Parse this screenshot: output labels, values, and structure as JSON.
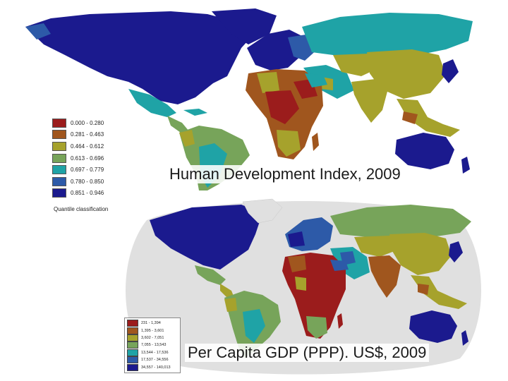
{
  "maps": {
    "hdi": {
      "title": "Human Development Index, 2009",
      "legend_title": "Quantile classification",
      "legend": [
        {
          "label": "0.000 - 0.280",
          "color": "#9b1c1c"
        },
        {
          "label": "0.281 - 0.463",
          "color": "#a0561e"
        },
        {
          "label": "0.464 - 0.612",
          "color": "#a6a22c"
        },
        {
          "label": "0.613 - 0.696",
          "color": "#77a45a"
        },
        {
          "label": "0.697 - 0.779",
          "color": "#1fa3a6"
        },
        {
          "label": "0.780 - 0.850",
          "color": "#2d5aa8"
        },
        {
          "label": "0.851 - 0.946",
          "color": "#1b1a8e"
        }
      ]
    },
    "gdp": {
      "title": "Per Capita GDP (PPP). US$, 2009",
      "legend": [
        {
          "label": "231 - 1,394",
          "color": "#9b1c1c"
        },
        {
          "label": "1,395 - 3,601",
          "color": "#a0561e"
        },
        {
          "label": "3,602 - 7,051",
          "color": "#a6a22c"
        },
        {
          "label": "7,055 - 13,543",
          "color": "#77a45a"
        },
        {
          "label": "13,544 - 17,536",
          "color": "#1fa3a6"
        },
        {
          "label": "17,537 - 34,556",
          "color": "#2d5aa8"
        },
        {
          "label": "34,557 - 140,013",
          "color": "#1b1a8e"
        }
      ]
    }
  }
}
